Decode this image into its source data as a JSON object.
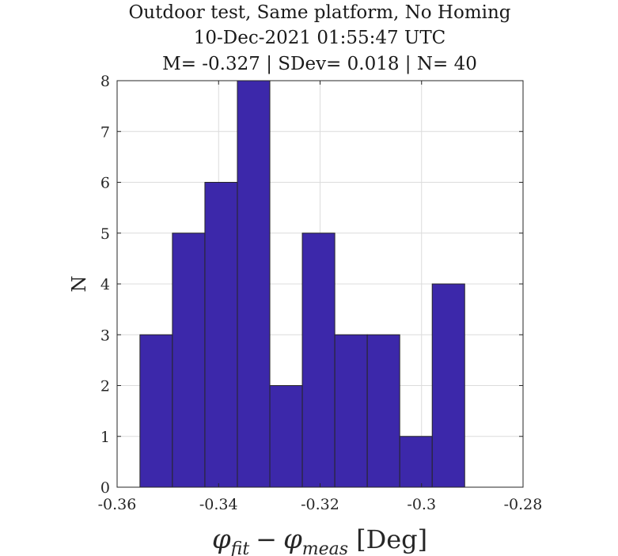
{
  "chart_data": {
    "type": "bar",
    "title_lines": [
      "Outdoor test, Same platform, No Homing",
      "10-Dec-2021 01:55:47 UTC",
      "M= -0.327 | SDev= 0.018 | N= 40"
    ],
    "xlabel": {
      "phi": "φ",
      "fit_sub": "fit",
      "minus": "−",
      "meas_sub": "meas",
      "unit": "[Deg]"
    },
    "ylabel": "N",
    "xlim": [
      -0.36,
      -0.28
    ],
    "ylim": [
      0,
      8
    ],
    "xticks": [
      -0.36,
      -0.34,
      -0.32,
      -0.3,
      -0.28
    ],
    "xtick_labels": [
      "-0.36",
      "-0.34",
      "-0.32",
      "-0.3",
      "-0.28"
    ],
    "yticks": [
      0,
      1,
      2,
      3,
      4,
      5,
      6,
      7,
      8
    ],
    "ytick_labels": [
      "0",
      "1",
      "2",
      "3",
      "4",
      "5",
      "6",
      "7",
      "8"
    ],
    "grid": true,
    "bar_color": "#3c28aa",
    "bin_edges": [
      -0.3555,
      -0.3491,
      -0.3427,
      -0.3363,
      -0.3299,
      -0.3235,
      -0.3171,
      -0.3107,
      -0.3043,
      -0.2979,
      -0.2915
    ],
    "values": [
      3,
      5,
      6,
      8,
      2,
      5,
      3,
      3,
      1,
      4
    ]
  }
}
